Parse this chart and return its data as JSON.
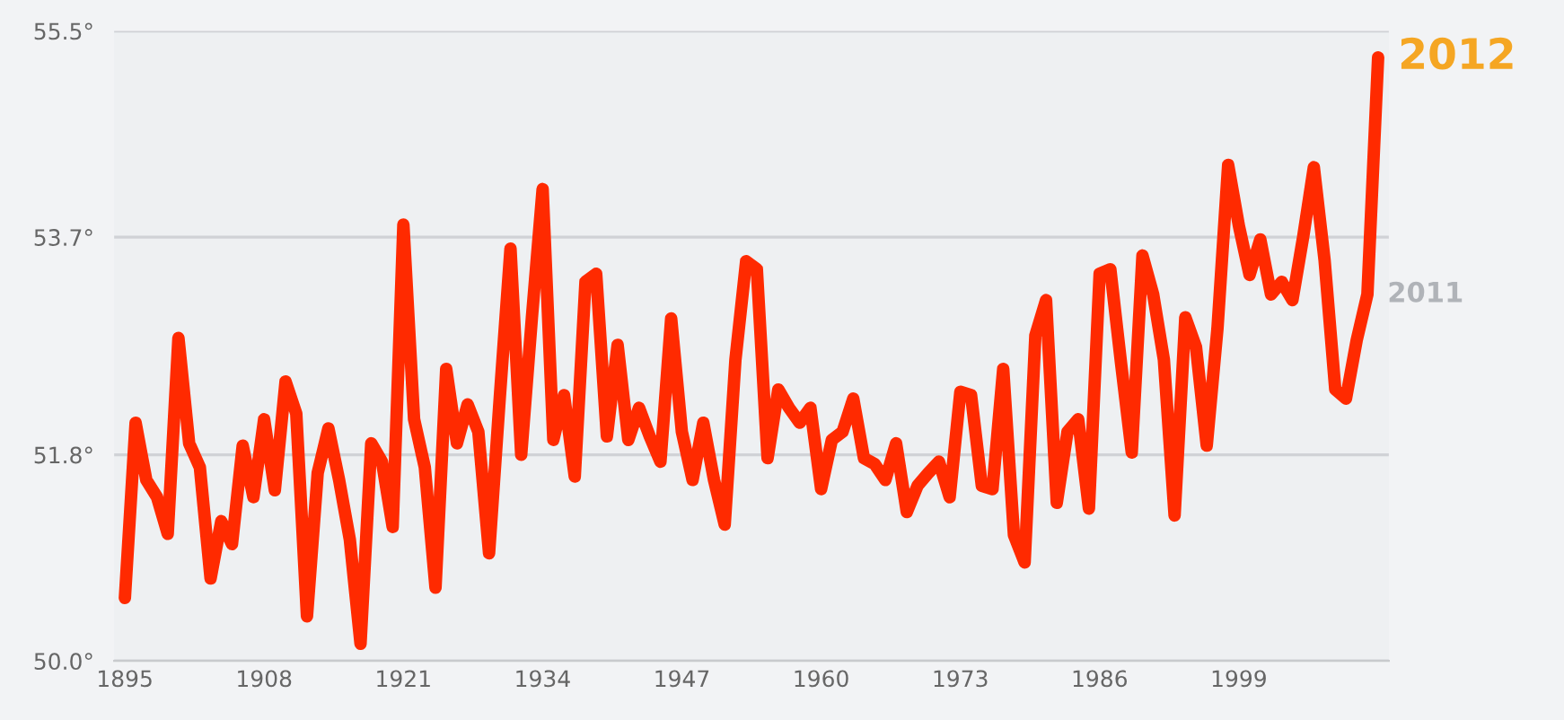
{
  "chart_data": {
    "type": "line",
    "x": [
      1895,
      1896,
      1897,
      1898,
      1899,
      1900,
      1901,
      1902,
      1903,
      1904,
      1905,
      1906,
      1907,
      1908,
      1909,
      1910,
      1911,
      1912,
      1913,
      1914,
      1915,
      1916,
      1917,
      1918,
      1919,
      1920,
      1921,
      1922,
      1923,
      1924,
      1925,
      1926,
      1927,
      1928,
      1929,
      1930,
      1931,
      1932,
      1933,
      1934,
      1935,
      1936,
      1937,
      1938,
      1939,
      1940,
      1941,
      1942,
      1943,
      1944,
      1945,
      1946,
      1947,
      1948,
      1949,
      1950,
      1951,
      1952,
      1953,
      1954,
      1955,
      1956,
      1957,
      1958,
      1959,
      1960,
      1961,
      1962,
      1963,
      1964,
      1965,
      1966,
      1967,
      1968,
      1969,
      1970,
      1971,
      1972,
      1973,
      1974,
      1975,
      1976,
      1977,
      1978,
      1979,
      1980,
      1981,
      1982,
      1983,
      1984,
      1985,
      1986,
      1987,
      1988,
      1989,
      1990,
      1991,
      1992,
      1993,
      1994,
      1995,
      1996,
      1997,
      1998,
      1999,
      2000,
      2001,
      2002,
      2003,
      2004,
      2005,
      2006,
      2007,
      2008,
      2009,
      2010,
      2011,
      2012
    ],
    "series": [
      {
        "color": "#ff2a00",
        "values": [
          50.55,
          52.08,
          51.58,
          51.43,
          51.11,
          52.82,
          51.9,
          51.69,
          50.72,
          51.22,
          51.02,
          51.88,
          51.43,
          52.11,
          51.49,
          52.44,
          52.16,
          50.39,
          51.64,
          52.03,
          51.58,
          51.06,
          50.15,
          51.9,
          51.74,
          51.17,
          53.81,
          52.11,
          51.69,
          50.64,
          52.55,
          51.9,
          52.24,
          52.0,
          50.94,
          52.3,
          53.6,
          51.8,
          53.0,
          54.12,
          51.93,
          52.32,
          51.61,
          53.31,
          53.38,
          51.96,
          52.76,
          51.93,
          52.21,
          51.96,
          51.74,
          52.99,
          52.0,
          51.58,
          52.08,
          51.58,
          51.19,
          52.63,
          53.49,
          53.42,
          51.77,
          52.37,
          52.21,
          52.08,
          52.21,
          51.5,
          51.93,
          52.0,
          52.29,
          51.77,
          51.72,
          51.58,
          51.9,
          51.3,
          51.53,
          51.64,
          51.74,
          51.43,
          52.35,
          52.32,
          51.53,
          51.5,
          52.55,
          51.1,
          50.86,
          52.84,
          53.15,
          51.38,
          52.0,
          52.11,
          51.33,
          53.38,
          53.42,
          52.6,
          51.82,
          53.54,
          53.2,
          52.63,
          51.27,
          53.0,
          52.74,
          51.88,
          52.9,
          54.33,
          53.8,
          53.37,
          53.68,
          53.2,
          53.31,
          53.15,
          53.7,
          54.31,
          53.5,
          52.37,
          52.29,
          52.8,
          53.2,
          55.27
        ]
      }
    ],
    "xlim": [
      1894,
      2013
    ],
    "ylim": [
      50.0,
      55.5
    ],
    "xticks": [
      1895,
      1908,
      1921,
      1934,
      1947,
      1960,
      1973,
      1986,
      1999
    ],
    "yticks": [
      {
        "value": 50.0,
        "label": "50.0°"
      },
      {
        "value": 51.8,
        "label": "51.8°"
      },
      {
        "value": 53.7,
        "label": "53.7°"
      },
      {
        "value": 55.5,
        "label": "55.5°"
      }
    ],
    "annotations": [
      {
        "text": "2012",
        "x": 2012,
        "y": 55.27
      },
      {
        "text": "2011",
        "x": 2011,
        "y": 53.2
      }
    ],
    "grid": "y",
    "marker": "none",
    "line_style": "solid"
  }
}
